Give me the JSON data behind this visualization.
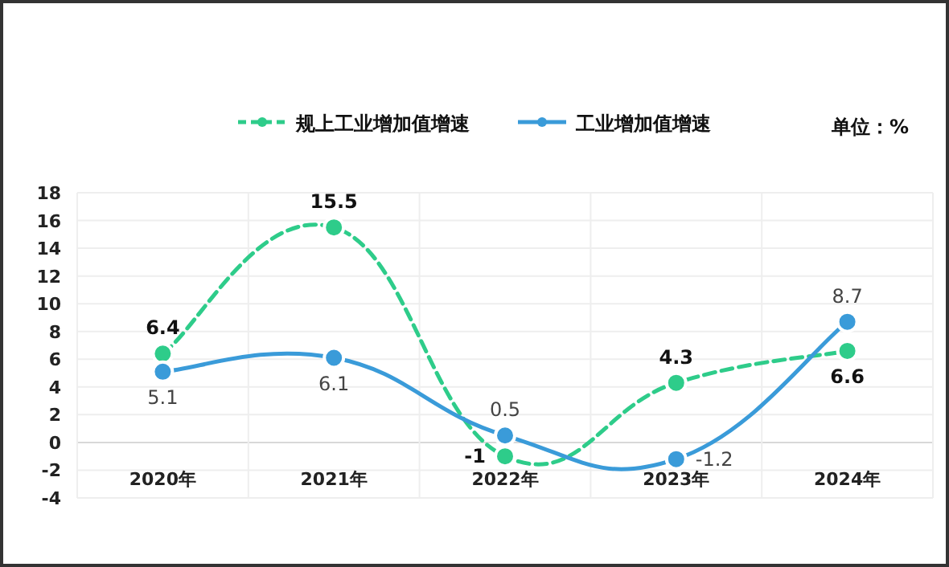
{
  "chart_data": {
    "type": "line",
    "categories": [
      "2020年",
      "2021年",
      "2022年",
      "2023年",
      "2024年"
    ],
    "series": [
      {
        "name": "规上工业增加值增速",
        "color": "#2ecc8a",
        "line_style": "dashed",
        "values": [
          6.4,
          15.5,
          -1,
          4.3,
          6.6
        ]
      },
      {
        "name": "工业增加值增速",
        "color": "#3a9bd9",
        "line_style": "solid",
        "values": [
          5.1,
          6.1,
          0.5,
          -1.2,
          8.7
        ]
      }
    ],
    "ylim": [
      -4,
      18
    ],
    "yticks": [
      -4,
      -2,
      0,
      2,
      4,
      6,
      8,
      10,
      12,
      14,
      16,
      18
    ],
    "grid": true,
    "legend": "top",
    "marker": "circle",
    "data_labels": true,
    "annotations": [
      "单位：%"
    ]
  }
}
